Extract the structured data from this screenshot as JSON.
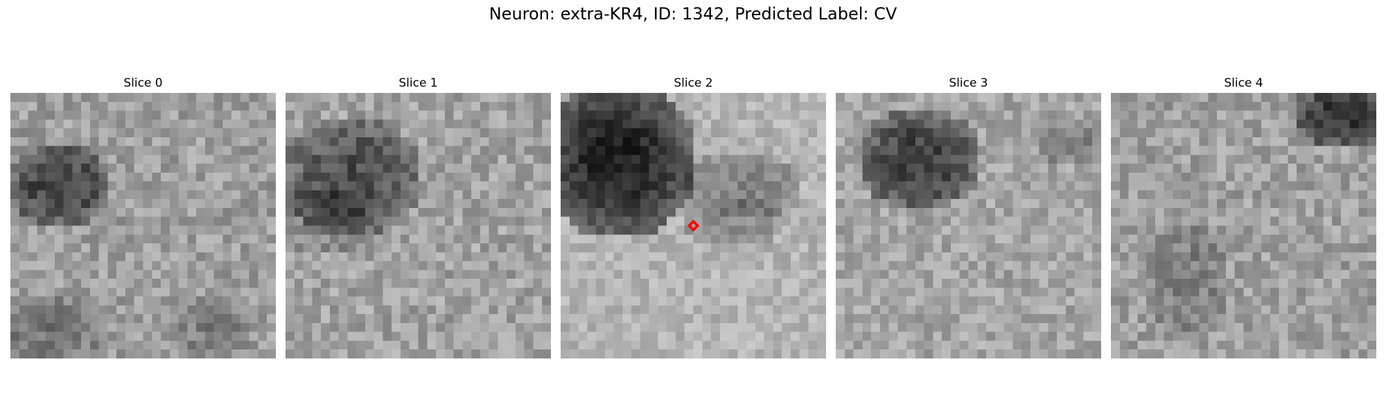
{
  "figure": {
    "title": "Neuron: extra-KR4, ID: 1342, Predicted Label: CV"
  },
  "slices": [
    {
      "title": "Slice 0"
    },
    {
      "title": "Slice 1"
    },
    {
      "title": "Slice 2"
    },
    {
      "title": "Slice 3"
    },
    {
      "title": "Slice 4"
    }
  ],
  "marker": {
    "slice_index": 2,
    "shape": "diamond-outline",
    "color": "#ff0000"
  },
  "colormap": "grayscale"
}
